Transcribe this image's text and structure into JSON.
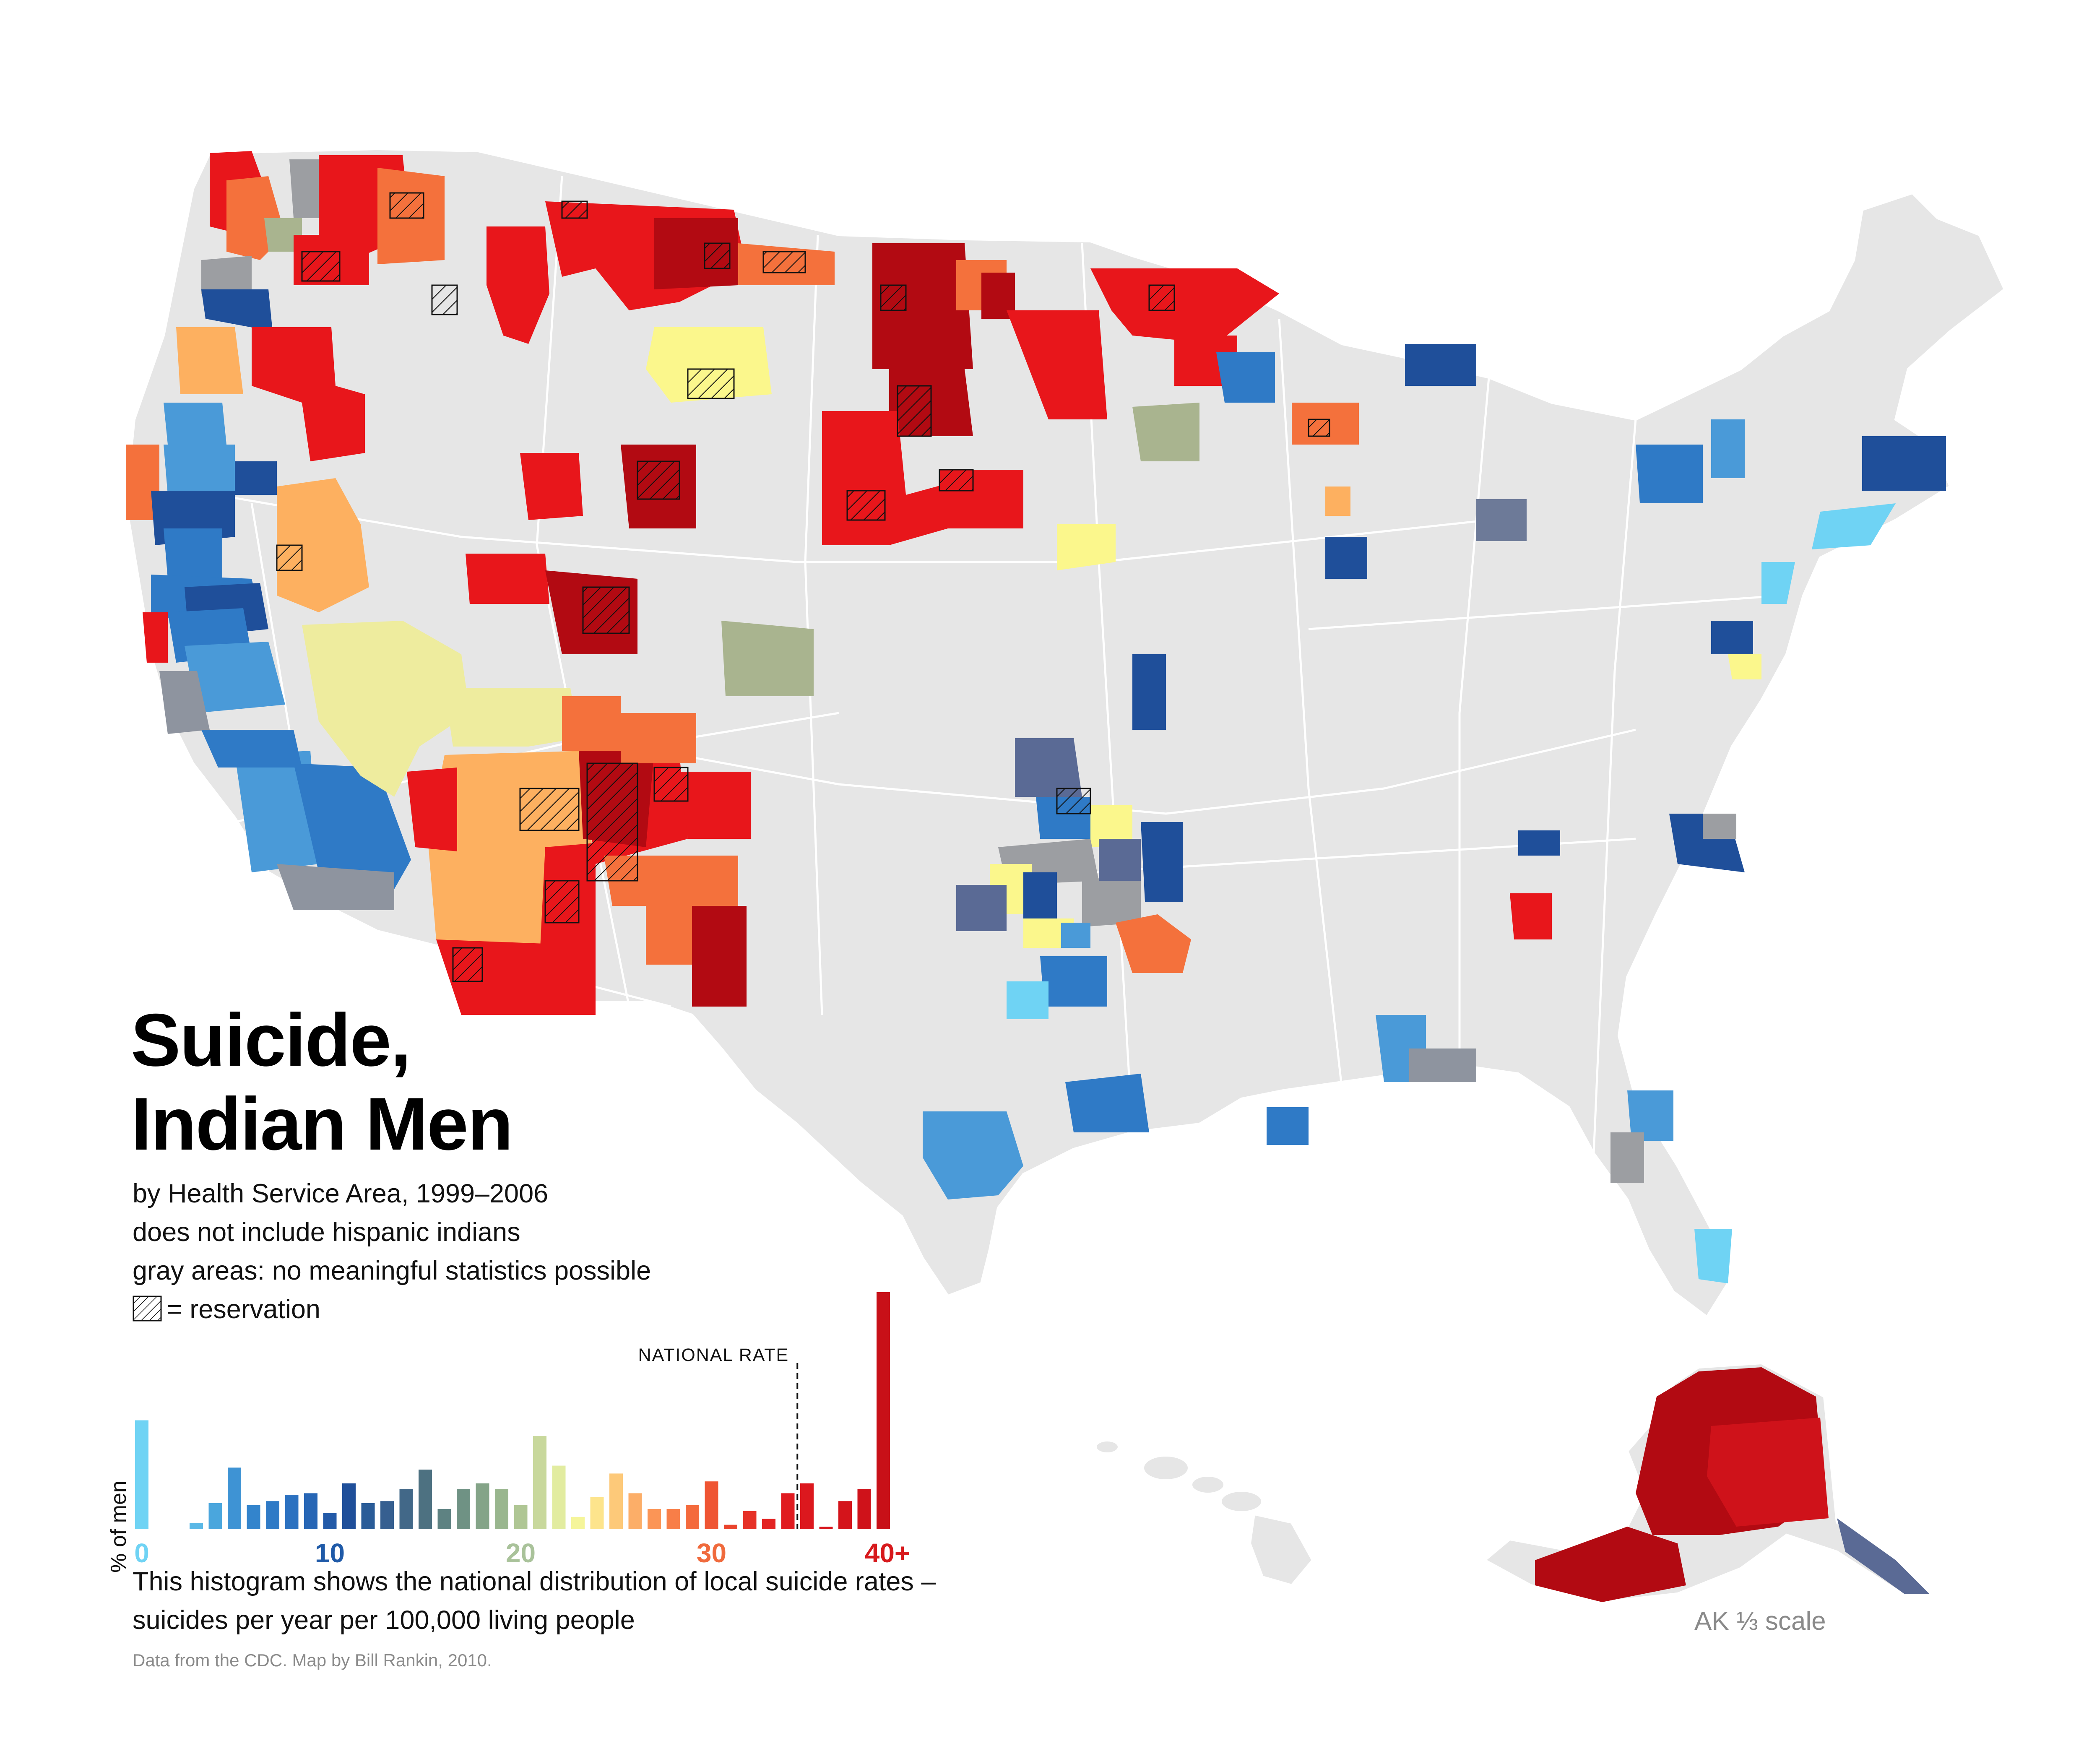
{
  "title": {
    "line1": "Suicide,",
    "line2": "Indian Men"
  },
  "subtitle": {
    "line1": "by Health Service Area, 1999–2006",
    "line2": "does not include hispanic indians",
    "line3": "gray areas: no meaningful statistics possible",
    "reservation_label": "= reservation"
  },
  "histogram": {
    "ylabel": "% of men",
    "national_rate_label": "NATIONAL RATE",
    "national_rate": 34.5,
    "tick_labels": [
      {
        "value": 0,
        "label": "0",
        "color": "#6fd3f4"
      },
      {
        "value": 10,
        "label": "10",
        "color": "#1f5aa8"
      },
      {
        "value": 20,
        "label": "20",
        "color": "#a9c29a"
      },
      {
        "value": 30,
        "label": "30",
        "color": "#f06a3c"
      },
      {
        "value": 40,
        "label": "40+",
        "color": "#d7191c"
      }
    ],
    "bins": [
      {
        "rate": 0,
        "pct": 5.5,
        "color": "#6fd3f4"
      },
      {
        "rate": 3,
        "pct": 0.3,
        "color": "#5ab8e6"
      },
      {
        "rate": 4,
        "pct": 1.3,
        "color": "#4aa6dd"
      },
      {
        "rate": 5,
        "pct": 3.1,
        "color": "#3e93d4"
      },
      {
        "rate": 6,
        "pct": 1.2,
        "color": "#3384cc"
      },
      {
        "rate": 7,
        "pct": 1.4,
        "color": "#2f7ac6"
      },
      {
        "rate": 8,
        "pct": 1.7,
        "color": "#2b71c0"
      },
      {
        "rate": 9,
        "pct": 1.8,
        "color": "#2766b5"
      },
      {
        "rate": 10,
        "pct": 0.8,
        "color": "#235aa8"
      },
      {
        "rate": 11,
        "pct": 2.3,
        "color": "#1f4f9a"
      },
      {
        "rate": 12,
        "pct": 1.3,
        "color": "#2a5c98"
      },
      {
        "rate": 13,
        "pct": 1.4,
        "color": "#365f90"
      },
      {
        "rate": 14,
        "pct": 2.0,
        "color": "#426888"
      },
      {
        "rate": 15,
        "pct": 3.0,
        "color": "#4d7181"
      },
      {
        "rate": 16,
        "pct": 1.0,
        "color": "#5e8282"
      },
      {
        "rate": 17,
        "pct": 2.0,
        "color": "#6f9284"
      },
      {
        "rate": 18,
        "pct": 2.3,
        "color": "#84a488"
      },
      {
        "rate": 19,
        "pct": 2.0,
        "color": "#99b68e"
      },
      {
        "rate": 20,
        "pct": 1.2,
        "color": "#afc694"
      },
      {
        "rate": 21,
        "pct": 4.7,
        "color": "#c8d89c"
      },
      {
        "rate": 22,
        "pct": 3.2,
        "color": "#e2eca0"
      },
      {
        "rate": 23,
        "pct": 0.6,
        "color": "#f5f59a"
      },
      {
        "rate": 24,
        "pct": 1.6,
        "color": "#fde48c"
      },
      {
        "rate": 25,
        "pct": 2.8,
        "color": "#fdc979"
      },
      {
        "rate": 26,
        "pct": 1.8,
        "color": "#fcae68"
      },
      {
        "rate": 27,
        "pct": 1.0,
        "color": "#fb9556"
      },
      {
        "rate": 28,
        "pct": 1.0,
        "color": "#f87e48"
      },
      {
        "rate": 29,
        "pct": 1.2,
        "color": "#f46a3c"
      },
      {
        "rate": 30,
        "pct": 2.4,
        "color": "#ef5533"
      },
      {
        "rate": 31,
        "pct": 0.2,
        "color": "#ea432c"
      },
      {
        "rate": 32,
        "pct": 0.9,
        "color": "#e63127"
      },
      {
        "rate": 33,
        "pct": 0.5,
        "color": "#e32423"
      },
      {
        "rate": 34,
        "pct": 1.8,
        "color": "#e01b20"
      },
      {
        "rate": 35,
        "pct": 2.3,
        "color": "#dc181e"
      },
      {
        "rate": 36,
        "pct": 0.1,
        "color": "#d8161d"
      },
      {
        "rate": 37,
        "pct": 1.4,
        "color": "#d4141b"
      },
      {
        "rate": 38,
        "pct": 2.0,
        "color": "#cf121a"
      },
      {
        "rate": 39,
        "pct": 12.0,
        "color": "#c81018"
      }
    ],
    "note_line1": "This histogram shows the national distribution of local suicide rates –",
    "note_line2": "suicides per year per 100,000 living people"
  },
  "credit": "Data from the CDC. Map by Bill Rankin, 2010.",
  "ak_scale_label": "AK ⅓ scale",
  "map_colors": {
    "land": "#e6e6e6",
    "border": "#ffffff",
    "no_data_gray": "#9c9ea2",
    "rate_0_light_blue": "#6fd3f4",
    "rate_5_blue": "#4a9ad8",
    "rate_10_dark_blue": "#1f4f9a",
    "rate_15_slate": "#5a6a95",
    "rate_20_sage": "#a9b48f",
    "rate_22_yellow": "#fbf78c",
    "rate_25_orange": "#fdb060",
    "rate_30_orange_red": "#f4713c",
    "rate_35_red": "#e8161b",
    "rate_40_dark_red": "#b20a12"
  }
}
